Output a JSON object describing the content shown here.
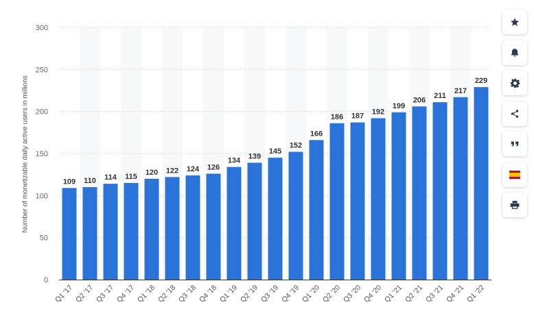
{
  "chart_data": {
    "type": "bar",
    "ylabel": "Number of monetizable daily active users in millions",
    "xlabel": "",
    "ylim": [
      0,
      300
    ],
    "yticks": [
      0,
      50,
      100,
      150,
      200,
      250,
      300
    ],
    "grid": true,
    "bar_color": "#2a73d9",
    "categories": [
      "Q1 '17",
      "Q2 '17",
      "Q3 '17",
      "Q4 '17",
      "Q1 '18",
      "Q2 '18",
      "Q3 '18",
      "Q4 '18",
      "Q1 '19",
      "Q2 '19",
      "Q3 '19",
      "Q4 '19",
      "Q1 '20",
      "Q2 '20",
      "Q3 '20",
      "Q4 '20",
      "Q1 '21",
      "Q2 '21",
      "Q3 '21",
      "Q4 '21",
      "Q1 '22"
    ],
    "values": [
      109,
      110,
      114,
      115,
      120,
      122,
      124,
      126,
      134,
      139,
      145,
      152,
      166,
      186,
      187,
      192,
      199,
      206,
      211,
      217,
      229
    ]
  },
  "toolbar": {
    "buttons": [
      {
        "icon": "star-icon",
        "name": "favorite-button"
      },
      {
        "icon": "bell-icon",
        "name": "notification-button"
      },
      {
        "icon": "gear-icon",
        "name": "settings-button"
      },
      {
        "icon": "share-icon",
        "name": "share-button"
      },
      {
        "icon": "quote-icon",
        "name": "cite-button"
      },
      {
        "icon": "spain-flag-icon",
        "name": "language-button"
      },
      {
        "icon": "print-icon",
        "name": "print-button"
      }
    ]
  }
}
